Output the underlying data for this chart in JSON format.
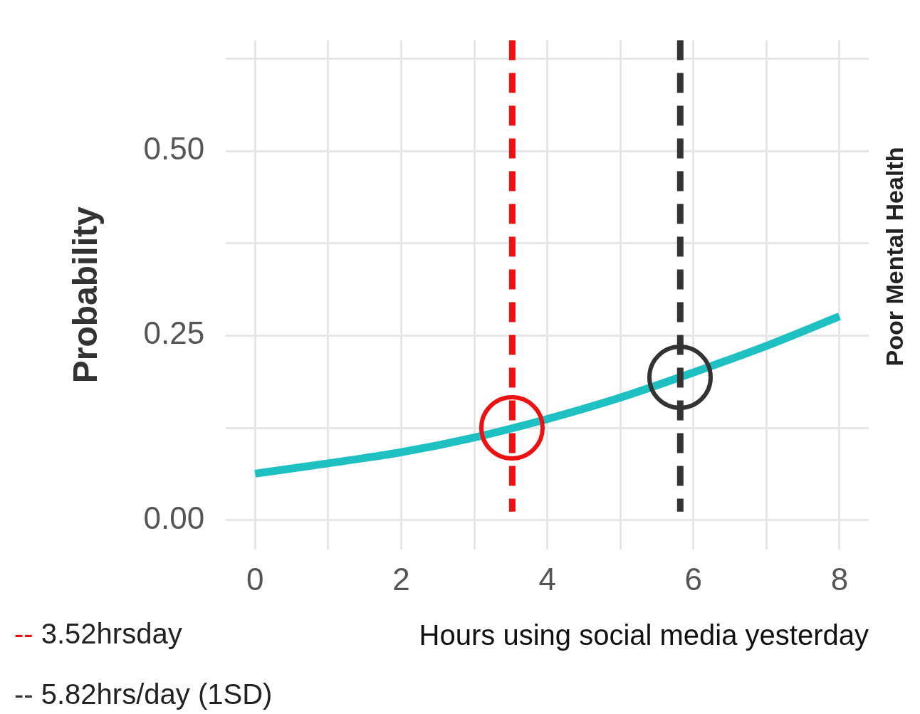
{
  "chart_data": {
    "type": "line",
    "ylabel": "Probability",
    "xlabel": "Hours using social media yesterday",
    "x": [
      0,
      1,
      2,
      3,
      4,
      5,
      6,
      7,
      8
    ],
    "series": [
      {
        "color": "#1ec0c2",
        "values": [
          0.063,
          0.077,
          0.092,
          0.112,
          0.137,
          0.166,
          0.2,
          0.236,
          0.276
        ]
      }
    ],
    "xlim": [
      -0.4,
      8.4
    ],
    "ylim": [
      -0.04,
      0.65
    ],
    "xticks": [
      0,
      {
        "value": 1,
        "label": null
      },
      2,
      {
        "value": 3,
        "label": null
      },
      4,
      {
        "value": 5,
        "label": null
      },
      6,
      {
        "value": 7,
        "label": null
      },
      8
    ],
    "yticks": [
      {
        "value": 0,
        "label": "0.00"
      },
      {
        "value": 0.125,
        "label": null
      },
      {
        "value": 0.25,
        "label": "0.25"
      },
      {
        "value": 0.375,
        "label": null
      },
      {
        "value": 0.5,
        "label": "0.50"
      },
      {
        "value": 0.625,
        "label": null
      }
    ],
    "grid": true,
    "legend": false,
    "marker": "none",
    "line_style": "solid",
    "ref_lines": [
      {
        "axis": "x",
        "value": 3.52,
        "label": "-- 3.52hrsday",
        "color": "#ee1111",
        "line_style": "dashed"
      },
      {
        "axis": "x",
        "value": 5.82,
        "label": "-- 5.82hrs/day (1SD)",
        "color": "#333333",
        "line_style": "dashed"
      }
    ],
    "annotations": [
      "Poor Mental Health"
    ]
  }
}
